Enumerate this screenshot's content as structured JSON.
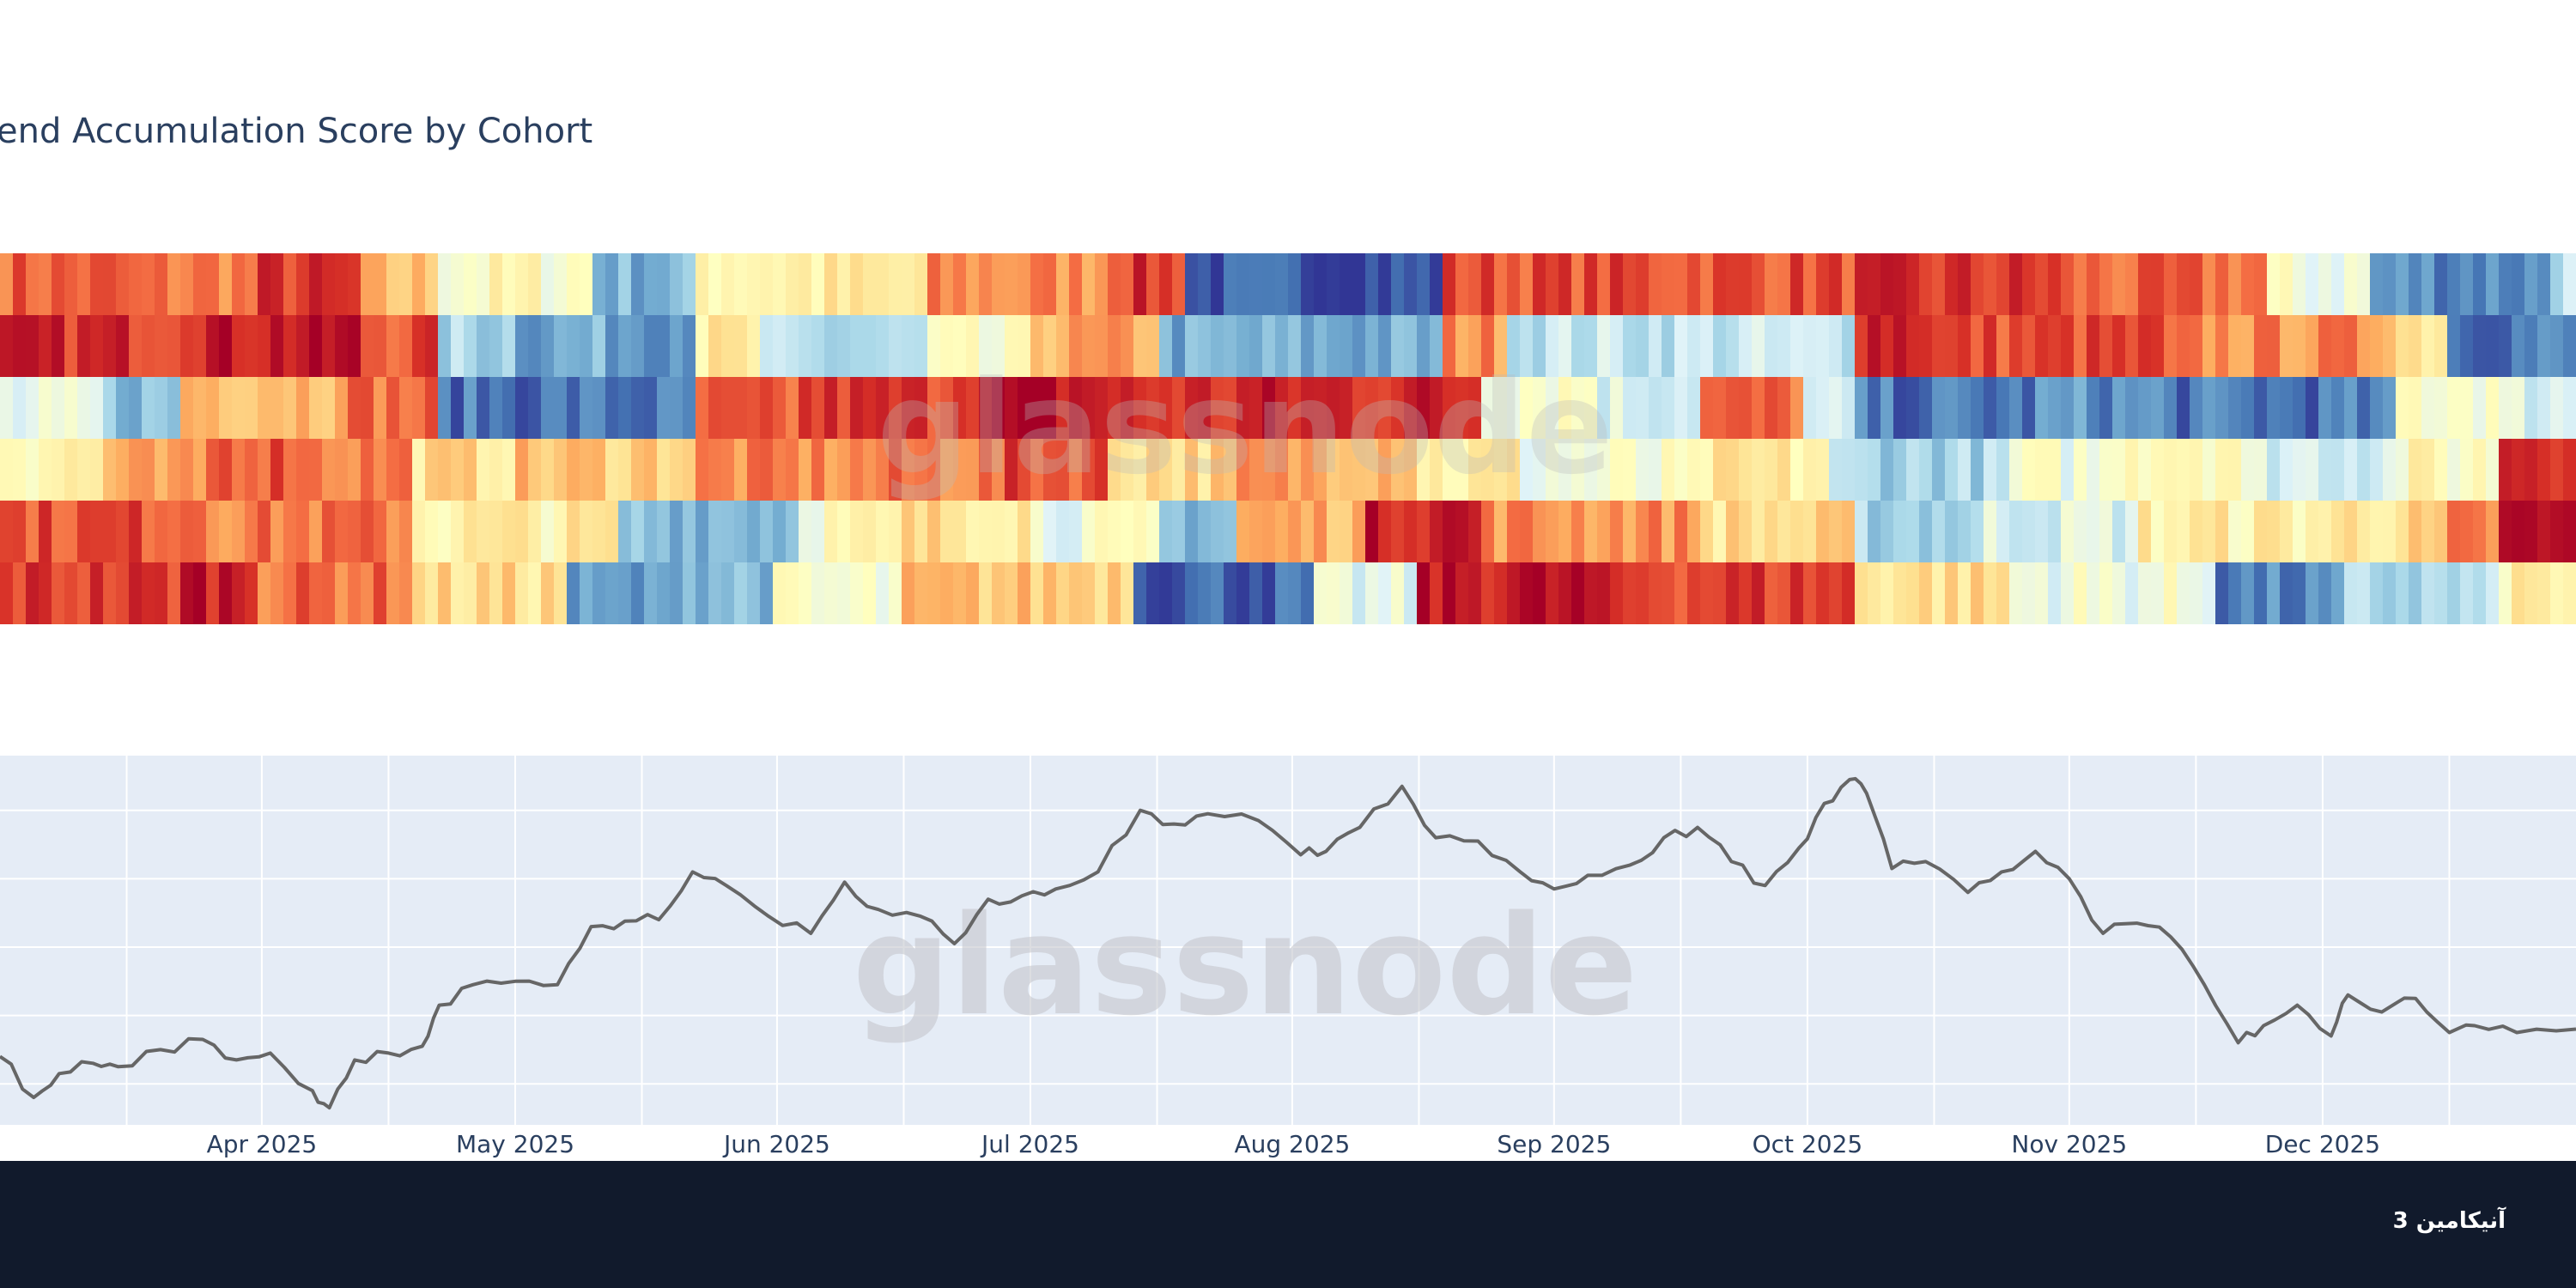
{
  "chart_data": [
    {
      "type": "heatmap",
      "title": "end Accumulation Score by Cohort",
      "watermark": "glassnode",
      "colorscale": [
        "#313695",
        "#4575b4",
        "#74add1",
        "#abd9e9",
        "#e0f3f8",
        "#ffffbf",
        "#fee090",
        "#fdae61",
        "#f46d43",
        "#d73027",
        "#a50026"
      ],
      "value_range": [
        0,
        1
      ],
      "rows": 6,
      "row_segments": [
        [
          [
            0,
            0.82
          ],
          [
            5,
            0.78
          ],
          [
            10,
            0.88
          ],
          [
            14,
            0.65
          ],
          [
            17,
            0.5
          ],
          [
            23,
            0.22
          ],
          [
            27,
            0.55
          ],
          [
            36,
            0.75
          ],
          [
            43,
            0.88
          ],
          [
            46,
            0.05
          ],
          [
            56,
            0.85
          ],
          [
            72,
            0.88
          ],
          [
            80,
            0.8
          ],
          [
            88,
            0.45
          ],
          [
            92,
            0.15
          ],
          [
            99,
            0.35
          ]
        ],
        [
          [
            0,
            0.9
          ],
          [
            7,
            0.95
          ],
          [
            14,
            0.85
          ],
          [
            17,
            0.3
          ],
          [
            20,
            0.2
          ],
          [
            27,
            0.55
          ],
          [
            29,
            0.3
          ],
          [
            36,
            0.45
          ],
          [
            40,
            0.7
          ],
          [
            45,
            0.2
          ],
          [
            56,
            0.75
          ],
          [
            58,
            0.35
          ],
          [
            72,
            0.95
          ],
          [
            75,
            0.85
          ],
          [
            84,
            0.75
          ],
          [
            93,
            0.6
          ],
          [
            95,
            0.12
          ],
          [
            100,
            0.12
          ]
        ],
        [
          [
            0,
            0.4
          ],
          [
            4,
            0.25
          ],
          [
            7,
            0.7
          ],
          [
            13,
            0.8
          ],
          [
            17,
            0.1
          ],
          [
            27,
            0.8
          ],
          [
            31,
            0.88
          ],
          [
            37,
            0.95
          ],
          [
            43,
            0.9
          ],
          [
            48,
            0.92
          ],
          [
            57,
            0.5
          ],
          [
            62,
            0.4
          ],
          [
            66,
            0.8
          ],
          [
            70,
            0.35
          ],
          [
            72,
            0.1
          ],
          [
            79,
            0.15
          ],
          [
            84,
            0.1
          ],
          [
            93,
            0.5
          ],
          [
            97,
            0.4
          ]
        ],
        [
          [
            0,
            0.55
          ],
          [
            4,
            0.68
          ],
          [
            8,
            0.85
          ],
          [
            12,
            0.78
          ],
          [
            16,
            0.6
          ],
          [
            20,
            0.65
          ],
          [
            27,
            0.75
          ],
          [
            34,
            0.78
          ],
          [
            39,
            0.85
          ],
          [
            43,
            0.62
          ],
          [
            48,
            0.72
          ],
          [
            55,
            0.55
          ],
          [
            59,
            0.45
          ],
          [
            66,
            0.55
          ],
          [
            71,
            0.3
          ],
          [
            78,
            0.45
          ],
          [
            82,
            0.55
          ],
          [
            87,
            0.4
          ],
          [
            93,
            0.5
          ],
          [
            97,
            0.95
          ]
        ],
        [
          [
            0,
            0.85
          ],
          [
            8,
            0.78
          ],
          [
            16,
            0.55
          ],
          [
            24,
            0.25
          ],
          [
            31,
            0.5
          ],
          [
            35,
            0.6
          ],
          [
            40,
            0.45
          ],
          [
            45,
            0.25
          ],
          [
            48,
            0.7
          ],
          [
            53,
            0.95
          ],
          [
            57,
            0.75
          ],
          [
            66,
            0.6
          ],
          [
            72,
            0.3
          ],
          [
            77,
            0.4
          ],
          [
            83,
            0.55
          ],
          [
            91,
            0.6
          ],
          [
            95,
            0.75
          ],
          [
            97,
            0.95
          ]
        ],
        [
          [
            0,
            0.88
          ],
          [
            7,
            0.95
          ],
          [
            10,
            0.8
          ],
          [
            16,
            0.6
          ],
          [
            22,
            0.15
          ],
          [
            26,
            0.25
          ],
          [
            30,
            0.45
          ],
          [
            35,
            0.65
          ],
          [
            44,
            0.08
          ],
          [
            51,
            0.4
          ],
          [
            55,
            0.95
          ],
          [
            62,
            0.88
          ],
          [
            72,
            0.6
          ],
          [
            78,
            0.45
          ],
          [
            86,
            0.12
          ],
          [
            91,
            0.3
          ],
          [
            97,
            0.55
          ]
        ]
      ],
      "series": [
        {
          "name": "",
          "values": [
            [
              0.82,
              0.78,
              0.88,
              0.65,
              0.5,
              0.22,
              0.55,
              0.75,
              0.88,
              0.05,
              0.85,
              0.88,
              0.8,
              0.45,
              0.15,
              0.35
            ]
          ]
        }
      ]
    },
    {
      "type": "line",
      "watermark": "glassnode",
      "x_range": [
        "2025-03-01",
        "2025-12-31"
      ],
      "tick_labels": [
        {
          "date": "2025-04-01",
          "label": "Apr 2025"
        },
        {
          "date": "2025-05-01",
          "label": "May 2025"
        },
        {
          "date": "2025-06-01",
          "label": "Jun 2025"
        },
        {
          "date": "2025-07-01",
          "label": "Jul 2025"
        },
        {
          "date": "2025-08-01",
          "label": "Aug 2025"
        },
        {
          "date": "2025-09-01",
          "label": "Sep 2025"
        },
        {
          "date": "2025-10-01",
          "label": "Oct 2025"
        },
        {
          "date": "2025-11-01",
          "label": "Nov 2025"
        },
        {
          "date": "2025-12-01",
          "label": "Dec 2025"
        }
      ],
      "y_range": [
        74000,
        128000
      ],
      "grid": true,
      "series": [
        {
          "name": "",
          "color": "#666666",
          "points": [
            [
              "2025-03-01",
              84000
            ],
            [
              "2025-03-05",
              78000
            ],
            [
              "2025-03-08",
              81500
            ],
            [
              "2025-03-12",
              83000
            ],
            [
              "2025-03-15",
              82500
            ],
            [
              "2025-03-20",
              85000
            ],
            [
              "2025-03-25",
              86500
            ],
            [
              "2025-03-29",
              83500
            ],
            [
              "2025-04-02",
              84500
            ],
            [
              "2025-04-07",
              79000
            ],
            [
              "2025-04-09",
              76500
            ],
            [
              "2025-04-12",
              83500
            ],
            [
              "2025-04-16",
              84500
            ],
            [
              "2025-04-20",
              85500
            ],
            [
              "2025-04-22",
              91500
            ],
            [
              "2025-04-26",
              94500
            ],
            [
              "2025-05-01",
              95000
            ],
            [
              "2025-05-06",
              94500
            ],
            [
              "2025-05-10",
              103000
            ],
            [
              "2025-05-14",
              103800
            ],
            [
              "2025-05-18",
              104000
            ],
            [
              "2025-05-22",
              111000
            ],
            [
              "2025-05-26",
              109000
            ],
            [
              "2025-05-31",
              104500
            ],
            [
              "2025-06-05",
              102000
            ],
            [
              "2025-06-09",
              109500
            ],
            [
              "2025-06-13",
              105500
            ],
            [
              "2025-06-18",
              104500
            ],
            [
              "2025-06-22",
              100500
            ],
            [
              "2025-06-26",
              107000
            ],
            [
              "2025-06-30",
              107500
            ],
            [
              "2025-07-04",
              108500
            ],
            [
              "2025-07-09",
              111000
            ],
            [
              "2025-07-14",
              120000
            ],
            [
              "2025-07-18",
              118000
            ],
            [
              "2025-07-22",
              119500
            ],
            [
              "2025-07-28",
              118500
            ],
            [
              "2025-08-02",
              113500
            ],
            [
              "2025-08-05",
              114000
            ],
            [
              "2025-08-09",
              117500
            ],
            [
              "2025-08-14",
              123500
            ],
            [
              "2025-08-18",
              116000
            ],
            [
              "2025-08-23",
              115500
            ],
            [
              "2025-08-28",
              111000
            ],
            [
              "2025-09-01",
              108500
            ],
            [
              "2025-09-05",
              110500
            ],
            [
              "2025-09-10",
              112000
            ],
            [
              "2025-09-14",
              116000
            ],
            [
              "2025-09-18",
              117500
            ],
            [
              "2025-09-22",
              112500
            ],
            [
              "2025-09-26",
              109000
            ],
            [
              "2025-09-30",
              114500
            ],
            [
              "2025-10-03",
              121000
            ],
            [
              "2025-10-06",
              124500
            ],
            [
              "2025-10-08",
              122500
            ],
            [
              "2025-10-11",
              111500
            ],
            [
              "2025-10-15",
              112500
            ],
            [
              "2025-10-20",
              108000
            ],
            [
              "2025-10-24",
              111000
            ],
            [
              "2025-10-28",
              114000
            ],
            [
              "2025-11-01",
              110000
            ],
            [
              "2025-11-05",
              102000
            ],
            [
              "2025-11-09",
              103500
            ],
            [
              "2025-11-13",
              101500
            ],
            [
              "2025-11-17",
              94500
            ],
            [
              "2025-11-21",
              86000
            ],
            [
              "2025-11-24",
              88500
            ],
            [
              "2025-11-28",
              91500
            ],
            [
              "2025-12-02",
              87000
            ],
            [
              "2025-12-04",
              93000
            ],
            [
              "2025-12-08",
              90500
            ],
            [
              "2025-12-12",
              92500
            ],
            [
              "2025-12-16",
              87500
            ],
            [
              "2025-12-19",
              88500
            ],
            [
              "2025-12-24",
              87500
            ],
            [
              "2025-12-31",
              88000
            ]
          ]
        }
      ]
    }
  ],
  "footer": {
    "logo_text": "آنیکامین 3"
  }
}
